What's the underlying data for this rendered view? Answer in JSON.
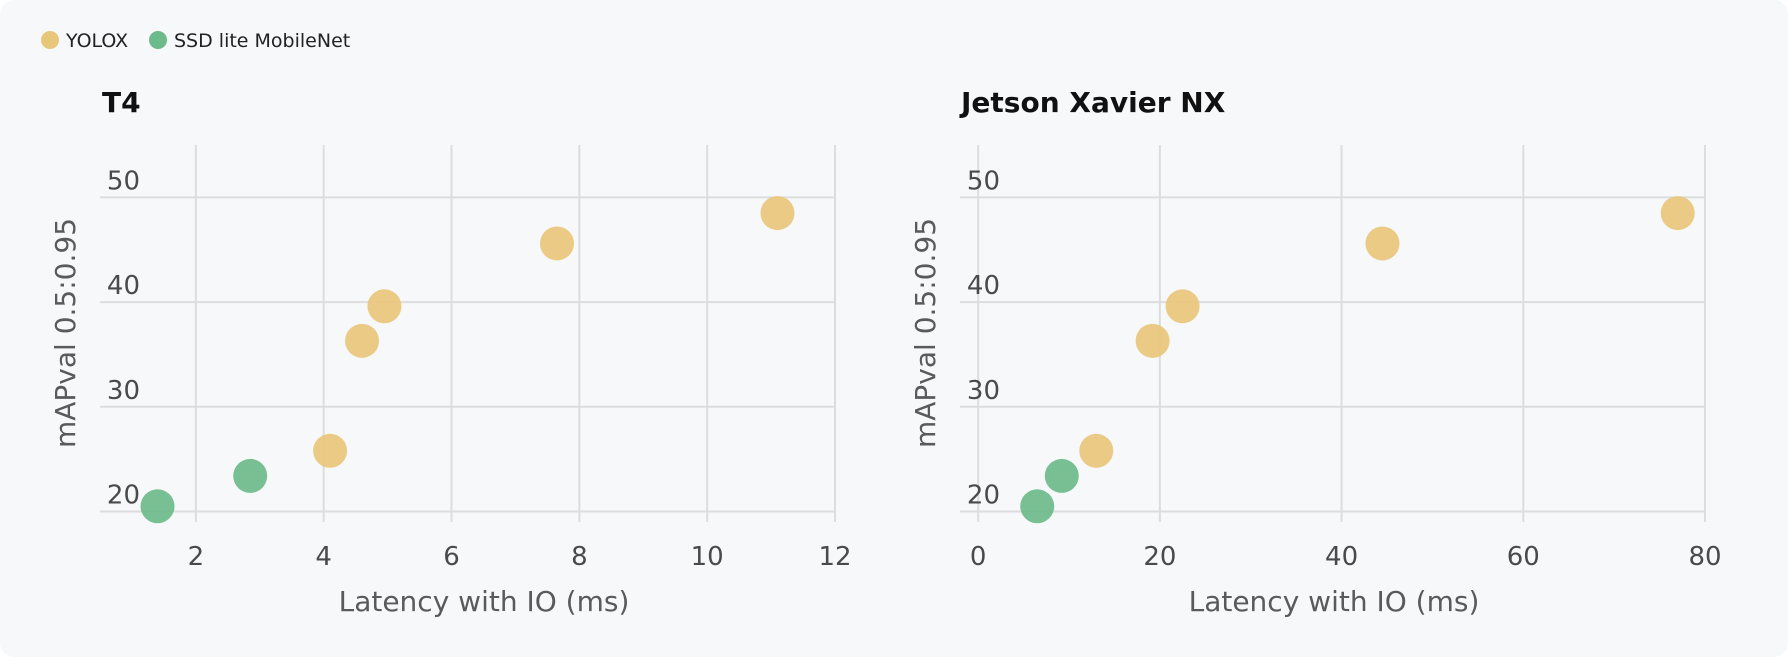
{
  "chart_data": [
    {
      "type": "scatter",
      "title": "T4",
      "xlabel": "Latency with IO (ms)",
      "ylabel": "mAPval 0.5:0.95",
      "xlim": [
        0.5,
        12
      ],
      "ylim": [
        19,
        55
      ],
      "xticks": [
        2,
        4,
        6,
        8,
        10,
        12
      ],
      "yticks": [
        20,
        30,
        40,
        50
      ],
      "grid": true,
      "series": [
        {
          "name": "YOLOX",
          "color": "#e8c67a",
          "x": [
            4.1,
            4.6,
            4.95,
            7.65,
            11.1
          ],
          "y": [
            25.8,
            36.3,
            39.6,
            45.6,
            48.5
          ]
        },
        {
          "name": "SSD lite MobileNet",
          "color": "#6dbb8a",
          "x": [
            1.4,
            2.85
          ],
          "y": [
            20.5,
            23.4
          ]
        }
      ]
    },
    {
      "type": "scatter",
      "title": "Jetson Xavier NX",
      "xlabel": "Latency with IO (ms)",
      "ylabel": "mAPval 0.5:0.95",
      "xlim": [
        -2,
        80
      ],
      "ylim": [
        19,
        55
      ],
      "xticks": [
        0,
        20,
        40,
        60,
        80
      ],
      "yticks": [
        20,
        30,
        40,
        50
      ],
      "grid": true,
      "series": [
        {
          "name": "YOLOX",
          "color": "#e8c67a",
          "x": [
            13,
            19.2,
            22.5,
            44.5,
            77
          ],
          "y": [
            25.8,
            36.3,
            39.6,
            45.6,
            48.5
          ]
        },
        {
          "name": "SSD lite MobileNet",
          "color": "#6dbb8a",
          "x": [
            6.5,
            9.2
          ],
          "y": [
            20.5,
            23.4
          ]
        }
      ]
    }
  ],
  "legend": {
    "position": "top-left",
    "items": [
      {
        "label": "YOLOX",
        "color": "#e8c67a"
      },
      {
        "label": "SSD lite MobileNet",
        "color": "#6dbb8a"
      }
    ]
  }
}
